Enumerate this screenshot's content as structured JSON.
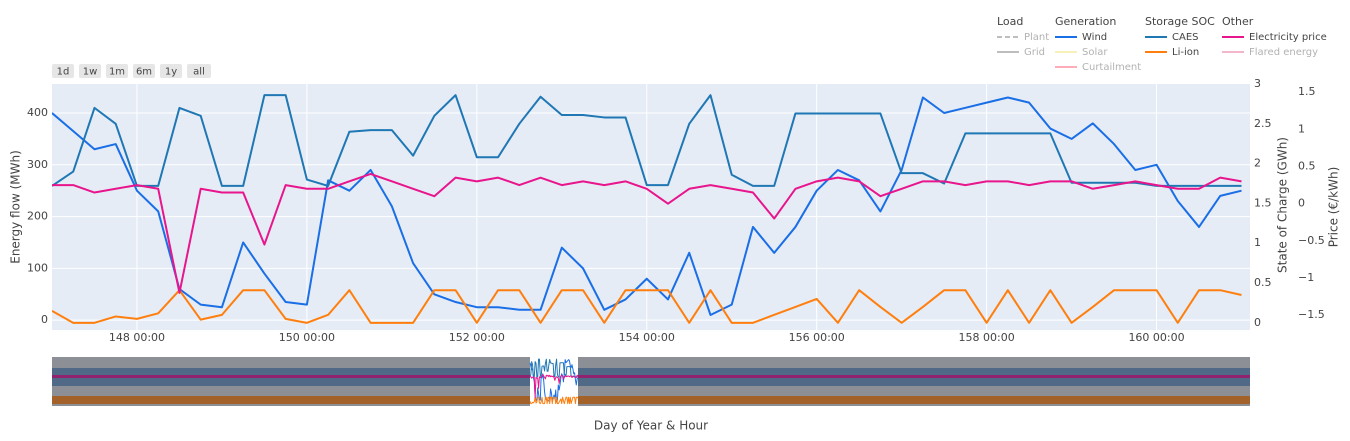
{
  "chart_data": {
    "type": "line",
    "xlabel": "Day of Year & Hour",
    "ylabel": "Energy flow (MWh)",
    "y2label": "State of Charge (GWh)",
    "y3label": "Price (€/kWh)",
    "range_buttons": [
      "1d",
      "1w",
      "1m",
      "6m",
      "1y",
      "all"
    ],
    "x": [
      147,
      147.25,
      147.5,
      147.75,
      148,
      148.25,
      148.5,
      148.75,
      149,
      149.25,
      149.5,
      149.75,
      150,
      150.25,
      150.5,
      150.75,
      151,
      151.25,
      151.5,
      151.75,
      152,
      152.25,
      152.5,
      152.75,
      153,
      153.25,
      153.5,
      153.75,
      154,
      154.25,
      154.5,
      154.75,
      155,
      155.25,
      155.5,
      155.75,
      156,
      156.25,
      156.5,
      156.75,
      157,
      157.25,
      157.5,
      157.75,
      158,
      158.25,
      158.5,
      158.75,
      159,
      159.25,
      159.5,
      159.75,
      160,
      160.25,
      160.5,
      160.75,
      161
    ],
    "xlim": [
      147,
      161.1
    ],
    "xticks": [
      {
        "value": 148,
        "label": "148 00:00"
      },
      {
        "value": 150,
        "label": "150 00:00"
      },
      {
        "value": 152,
        "label": "152 00:00"
      },
      {
        "value": 154,
        "label": "154 00:00"
      },
      {
        "value": 156,
        "label": "156 00:00"
      },
      {
        "value": 158,
        "label": "158 00:00"
      },
      {
        "value": 160,
        "label": "160 00:00"
      }
    ],
    "ylim": [
      -19,
      456
    ],
    "yticks": [
      0,
      100,
      200,
      300,
      400
    ],
    "y2lim": [
      -0.09,
      3.0
    ],
    "y2ticks": [
      0,
      0.5,
      1,
      1.5,
      2,
      2.5,
      3
    ],
    "y3lim": [
      -1.7,
      1.61
    ],
    "y3ticks": [
      {
        "value": -1.5,
        "label": "−1.5"
      },
      {
        "value": -1,
        "label": "−1"
      },
      {
        "value": -0.5,
        "label": "−0.5"
      },
      0,
      0.5,
      1,
      1.5
    ],
    "grid": true,
    "series_groups": [
      {
        "title": "Load",
        "series": [
          {
            "name": "Plant",
            "color": "#7f7f7f",
            "dash": true,
            "visible": "legendonly"
          },
          {
            "name": "Grid",
            "color": "#7f7f7f",
            "visible": "legendonly"
          }
        ]
      },
      {
        "title": "Generation",
        "series": [
          {
            "name": "Wind",
            "color": "#1a6ee6",
            "axis": "y",
            "values": [
              400,
              365,
              330,
              340,
              250,
              210,
              60,
              30,
              25,
              150,
              90,
              35,
              30,
              270,
              250,
              290,
              220,
              110,
              50,
              35,
              25,
              25,
              20,
              20,
              140,
              100,
              20,
              40,
              80,
              40,
              130,
              10,
              30,
              180,
              130,
              180,
              250,
              290,
              270,
              210,
              290,
              430,
              400,
              410,
              420,
              430,
              420,
              370,
              350,
              380,
              340,
              290,
              300,
              230,
              180,
              240,
              250
            ]
          },
          {
            "name": "Solar",
            "color": "#f2e27a",
            "visible": "legendonly"
          },
          {
            "name": "Curtailment",
            "color": "#ff5c7a",
            "visible": "legendonly"
          }
        ]
      },
      {
        "title": "Storage SOC",
        "series": [
          {
            "name": "CAES",
            "color": "#1f77b4",
            "axis": "y2",
            "values": [
              1.72,
              1.9,
              2.7,
              2.5,
              1.72,
              1.72,
              2.7,
              2.6,
              1.72,
              1.72,
              2.86,
              2.86,
              1.8,
              1.72,
              2.4,
              2.42,
              2.42,
              2.1,
              2.6,
              2.86,
              2.08,
              2.08,
              2.5,
              2.84,
              2.61,
              2.61,
              2.58,
              2.58,
              1.73,
              1.73,
              2.5,
              2.86,
              1.86,
              1.72,
              1.72,
              2.63,
              2.63,
              2.63,
              2.63,
              2.63,
              1.88,
              1.88,
              1.75,
              2.38,
              2.38,
              2.38,
              2.38,
              2.38,
              1.76,
              1.76,
              1.76,
              1.76,
              1.72,
              1.72,
              1.72,
              1.72,
              1.72
            ]
          },
          {
            "name": "Li-ion",
            "color": "#ff7f0e",
            "axis": "y2",
            "values": [
              0.15,
              0,
              0,
              0.08,
              0.05,
              0.12,
              0.41,
              0.04,
              0.1,
              0.41,
              0.41,
              0.05,
              0,
              0.1,
              0.41,
              0,
              0,
              0,
              0.41,
              0.41,
              0,
              0.41,
              0.41,
              0,
              0.41,
              0.41,
              0,
              0.41,
              0.41,
              0.41,
              0,
              0.41,
              0,
              0,
              0.1,
              0.2,
              0.3,
              0,
              0.41,
              0.2,
              0,
              0.2,
              0.41,
              0.41,
              0,
              0.41,
              0,
              0.41,
              0,
              0.2,
              0.41,
              0.41,
              0.41,
              0,
              0.41,
              0.41,
              0.35
            ]
          }
        ]
      },
      {
        "title": "Other",
        "series": [
          {
            "name": "Electricity price",
            "color": "#e8158c",
            "axis": "y3",
            "values": [
              0.25,
              0.25,
              0.15,
              0.2,
              0.25,
              0.2,
              -1.2,
              0.2,
              0.15,
              0.15,
              -0.55,
              0.25,
              0.2,
              0.2,
              0.3,
              0.4,
              0.3,
              0.2,
              0.1,
              0.35,
              0.3,
              0.35,
              0.25,
              0.35,
              0.25,
              0.3,
              0.25,
              0.3,
              0.2,
              0,
              0.2,
              0.25,
              0.2,
              0.15,
              -0.2,
              0.2,
              0.3,
              0.35,
              0.3,
              0.1,
              0.2,
              0.3,
              0.3,
              0.25,
              0.3,
              0.3,
              0.25,
              0.3,
              0.3,
              0.2,
              0.25,
              0.3,
              0.25,
              0.2,
              0.2,
              0.35,
              0.3
            ]
          },
          {
            "name": "Flared energy",
            "color": "#e8709a",
            "visible": "legendonly"
          }
        ]
      }
    ]
  }
}
